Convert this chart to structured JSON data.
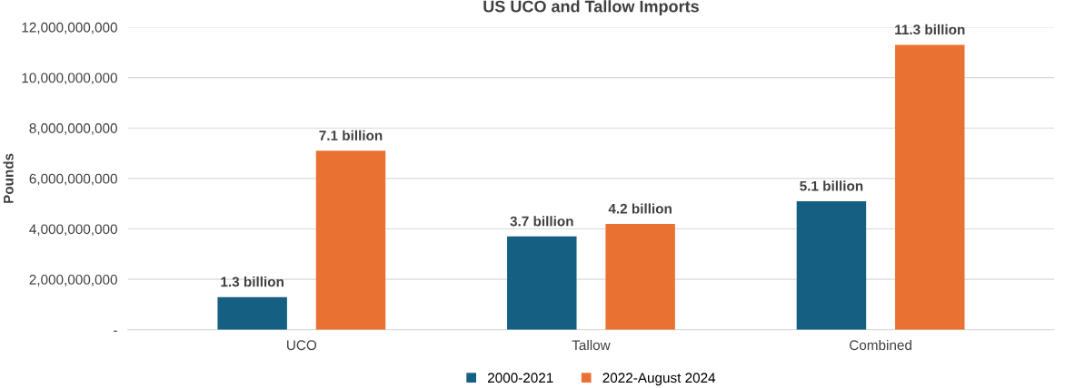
{
  "chart_data": {
    "type": "bar",
    "title": "US UCO and Tallow Imports",
    "ylabel": "Pounds",
    "categories": [
      "UCO",
      "Tallow",
      "Combined"
    ],
    "series": [
      {
        "name": "2000-2021",
        "color": "#156082",
        "values": [
          1300000000,
          3700000000,
          5100000000
        ],
        "value_labels": [
          "1.3 billion",
          "3.7 billion",
          "5.1 billion"
        ]
      },
      {
        "name": "2022-August 2024",
        "color": "#e97132",
        "values": [
          7100000000,
          4200000000,
          11300000000
        ],
        "value_labels": [
          "7.1 billion",
          "4.2 billion",
          "11.3 billion"
        ]
      }
    ],
    "ylim": [
      0,
      12000000000
    ],
    "yticks": [
      {
        "value": 0,
        "label": "-"
      },
      {
        "value": 2000000000,
        "label": "2,000,000,000"
      },
      {
        "value": 4000000000,
        "label": "4,000,000,000"
      },
      {
        "value": 6000000000,
        "label": "6,000,000,000"
      },
      {
        "value": 8000000000,
        "label": "8,000,000,000"
      },
      {
        "value": 10000000000,
        "label": "10,000,000,000"
      },
      {
        "value": 12000000000,
        "label": "12,000,000,000"
      }
    ],
    "grid": "y",
    "legend": "bottom"
  }
}
